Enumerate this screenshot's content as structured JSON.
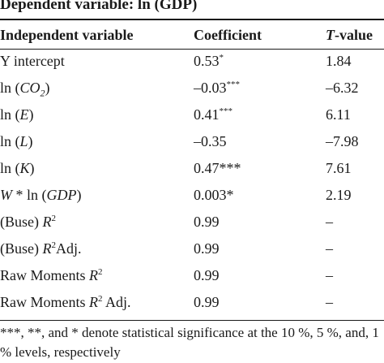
{
  "title": "Dependent variable: ln (GDP)",
  "columns": {
    "variable": "Independent variable",
    "coefficient": "Coefficient",
    "tvalue_italic": "T",
    "tvalue_rest": "-value"
  },
  "rows": [
    {
      "var_parts": [
        "Y intercept"
      ],
      "coef": "0.53",
      "coef_sup": "*",
      "tval": "1.84"
    },
    {
      "var_parts": [
        "ln (",
        "CO",
        "2",
        ")"
      ],
      "coef": "–0.03",
      "coef_sup": "***",
      "tval": "–6.32"
    },
    {
      "var_parts": [
        "ln (",
        "E",
        ")"
      ],
      "coef": "0.41",
      "coef_sup": "***",
      "tval": "6.11"
    },
    {
      "var_parts": [
        "ln (",
        "L",
        ")"
      ],
      "coef": "–0.35",
      "coef_sup": "",
      "tval": "–7.98"
    },
    {
      "var_parts": [
        "ln (",
        "K",
        ")"
      ],
      "coef": "0.47***",
      "coef_sup": "",
      "tval": "7.61"
    },
    {
      "var_parts": [
        "W",
        " * ln (",
        "GDP",
        ")"
      ],
      "coef": "0.003*",
      "coef_sup": "",
      "tval": "2.19"
    },
    {
      "var_parts": [
        "(Buse) ",
        "R",
        "2"
      ],
      "coef": "0.99",
      "coef_sup": "",
      "tval": "–"
    },
    {
      "var_parts": [
        "(Buse) ",
        "R",
        "2",
        "Adj."
      ],
      "coef": "0.99",
      "coef_sup": "",
      "tval": "–"
    },
    {
      "var_parts": [
        "Raw Moments ",
        "R",
        "2"
      ],
      "coef": "0.99",
      "coef_sup": "",
      "tval": "–"
    },
    {
      "var_parts": [
        "Raw Moments ",
        "R",
        "2",
        " Adj."
      ],
      "coef": "0.99",
      "coef_sup": "",
      "tval": "–"
    }
  ],
  "footnote": "***, **, and * denote statistical significance at the 10 %, 5 %, and, 1 % levels, respectively"
}
